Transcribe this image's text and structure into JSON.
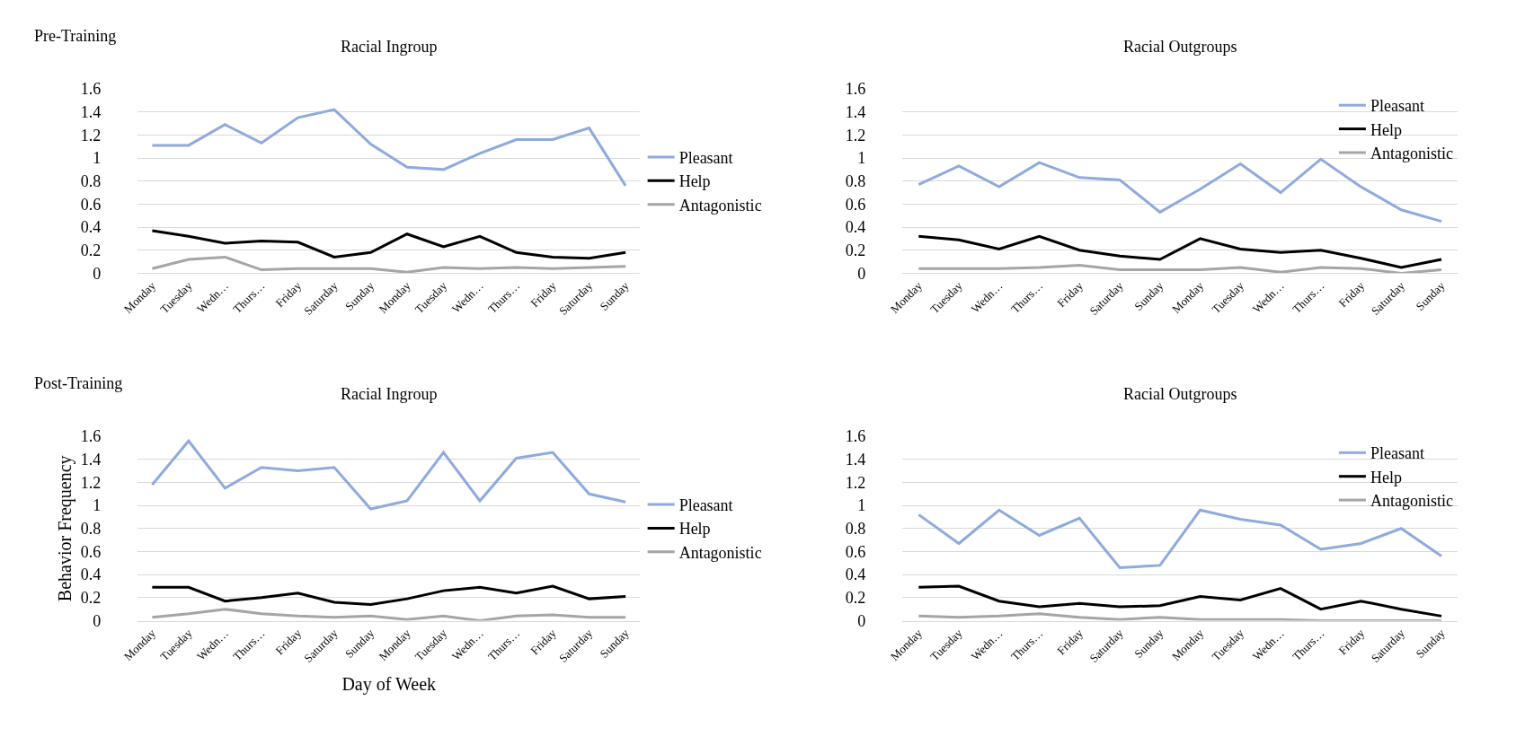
{
  "chart_data": [
    {
      "type": "line",
      "title": "Racial Ingroup",
      "annotations": [
        "Pre-Training"
      ],
      "categories": [
        "Monday",
        "Tuesday",
        "Wedn…",
        "Thurs…",
        "Friday",
        "Saturday",
        "Sunday",
        "Monday",
        "Tuesday",
        "Wedn…",
        "Thurs…",
        "Friday",
        "Saturday",
        "Sunday"
      ],
      "ylim": [
        0,
        1.6
      ],
      "yticks": [
        0,
        0.2,
        0.4,
        0.6,
        0.8,
        1,
        1.2,
        1.4,
        1.6
      ],
      "grid": "y",
      "legend": "right",
      "line_style": "solid",
      "series": [
        {
          "name": "Pleasant",
          "color": "#8faadc",
          "values": [
            1.11,
            1.11,
            1.29,
            1.13,
            1.35,
            1.42,
            1.12,
            0.92,
            0.9,
            1.04,
            1.16,
            1.16,
            1.26,
            0.76
          ]
        },
        {
          "name": "Help",
          "color": "#000000",
          "values": [
            0.37,
            0.32,
            0.26,
            0.28,
            0.27,
            0.14,
            0.18,
            0.34,
            0.23,
            0.32,
            0.18,
            0.14,
            0.13,
            0.18
          ]
        },
        {
          "name": "Antagonistic",
          "color": "#a5a5a5",
          "values": [
            0.04,
            0.12,
            0.14,
            0.03,
            0.04,
            0.04,
            0.04,
            0.01,
            0.05,
            0.04,
            0.05,
            0.04,
            0.05,
            0.06
          ]
        }
      ]
    },
    {
      "type": "line",
      "title": "Racial Outgroups",
      "categories": [
        "Monday",
        "Tuesday",
        "Wedn…",
        "Thurs…",
        "Friday",
        "Saturday",
        "Sunday",
        "Monday",
        "Tuesday",
        "Wedn…",
        "Thurs…",
        "Friday",
        "Saturday",
        "Sunday"
      ],
      "ylim": [
        0,
        1.6
      ],
      "yticks": [
        0,
        0.2,
        0.4,
        0.6,
        0.8,
        1,
        1.2,
        1.4,
        1.6
      ],
      "grid": "y",
      "legend": "top right",
      "line_style": "solid",
      "series": [
        {
          "name": "Pleasant",
          "color": "#8faadc",
          "values": [
            0.77,
            0.93,
            0.75,
            0.96,
            0.83,
            0.81,
            0.53,
            0.73,
            0.95,
            0.7,
            0.99,
            0.75,
            0.55,
            0.45
          ]
        },
        {
          "name": "Help",
          "color": "#000000",
          "values": [
            0.32,
            0.29,
            0.21,
            0.32,
            0.2,
            0.15,
            0.12,
            0.3,
            0.21,
            0.18,
            0.2,
            0.13,
            0.05,
            0.12
          ]
        },
        {
          "name": "Antagonistic",
          "color": "#a5a5a5",
          "values": [
            0.04,
            0.04,
            0.04,
            0.05,
            0.07,
            0.03,
            0.03,
            0.03,
            0.05,
            0.01,
            0.05,
            0.04,
            0.0,
            0.03
          ]
        }
      ]
    },
    {
      "type": "line",
      "title": "Racial Ingroup",
      "annotations": [
        "Post-Training"
      ],
      "xlabel": "Day of Week",
      "ylabel": "Behavior Frequency",
      "categories": [
        "Monday",
        "Tuesday",
        "Wedn…",
        "Thurs…",
        "Friday",
        "Saturday",
        "Sunday",
        "Monday",
        "Tuesday",
        "Wedn…",
        "Thurs…",
        "Friday",
        "Saturday",
        "Sunday"
      ],
      "ylim": [
        0,
        1.6
      ],
      "yticks": [
        0,
        0.2,
        0.4,
        0.6,
        0.8,
        1,
        1.2,
        1.4,
        1.6
      ],
      "grid": "y",
      "legend": "right",
      "line_style": "solid",
      "series": [
        {
          "name": "Pleasant",
          "color": "#8faadc",
          "values": [
            1.18,
            1.56,
            1.15,
            1.33,
            1.3,
            1.33,
            0.97,
            1.04,
            1.46,
            1.04,
            1.41,
            1.46,
            1.1,
            1.03
          ]
        },
        {
          "name": "Help",
          "color": "#000000",
          "values": [
            0.29,
            0.29,
            0.17,
            0.2,
            0.24,
            0.16,
            0.14,
            0.19,
            0.26,
            0.29,
            0.24,
            0.3,
            0.19,
            0.21
          ]
        },
        {
          "name": "Antagonistic",
          "color": "#a5a5a5",
          "values": [
            0.03,
            0.06,
            0.1,
            0.06,
            0.04,
            0.03,
            0.04,
            0.01,
            0.04,
            0.0,
            0.04,
            0.05,
            0.03,
            0.03
          ]
        }
      ]
    },
    {
      "type": "line",
      "title": "Racial Outgroups",
      "categories": [
        "Monday",
        "Tuesday",
        "Wedn…",
        "Thurs…",
        "Friday",
        "Saturday",
        "Sunday",
        "Monday",
        "Tuesday",
        "Wedn…",
        "Thurs…",
        "Friday",
        "Saturday",
        "Sunday"
      ],
      "ylim": [
        0,
        1.6
      ],
      "yticks": [
        0,
        0.2,
        0.4,
        0.6,
        0.8,
        1,
        1.2,
        1.4,
        1.6
      ],
      "grid": "y",
      "legend": "top right",
      "line_style": "solid",
      "series": [
        {
          "name": "Pleasant",
          "color": "#8faadc",
          "values": [
            0.92,
            0.67,
            0.96,
            0.74,
            0.89,
            0.46,
            0.48,
            0.96,
            0.88,
            0.83,
            0.62,
            0.67,
            0.8,
            0.56
          ]
        },
        {
          "name": "Help",
          "color": "#000000",
          "values": [
            0.29,
            0.3,
            0.17,
            0.12,
            0.15,
            0.12,
            0.13,
            0.21,
            0.18,
            0.28,
            0.1,
            0.17,
            0.1,
            0.04
          ]
        },
        {
          "name": "Antagonistic",
          "color": "#a5a5a5",
          "values": [
            0.04,
            0.03,
            0.04,
            0.06,
            0.03,
            0.01,
            0.03,
            0.01,
            0.01,
            0.01,
            0.0,
            0.0,
            0.0,
            0.0
          ]
        }
      ]
    }
  ]
}
